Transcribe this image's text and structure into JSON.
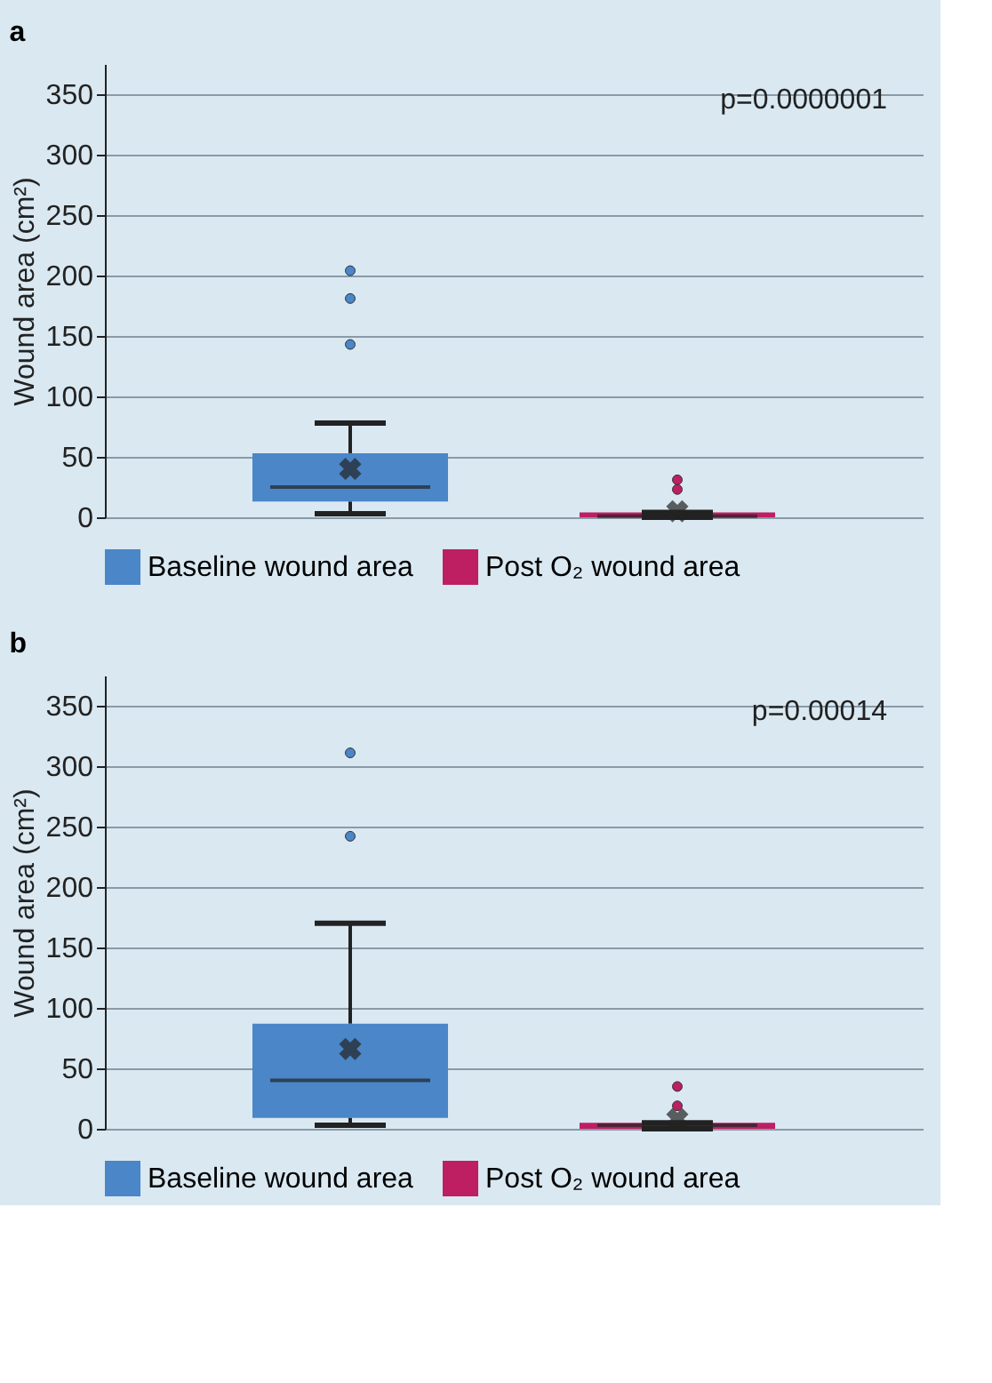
{
  "chart_data": [
    {
      "type": "box",
      "title": "a",
      "ylabel": "Wound area (cm²)",
      "categories": [
        null,
        null
      ],
      "series": [
        {
          "name": "Baseline wound area",
          "color": "#4a86c8",
          "boxes": [
            {
              "low": 3,
              "q1": 13,
              "median": 25,
              "q3": 53,
              "high": 78,
              "mean": 40,
              "outliers": [
                143,
                181,
                204
              ]
            },
            null
          ]
        },
        {
          "name": "Post O₂ wound area",
          "color": "#be1e62",
          "boxes": [
            null,
            {
              "low": 0,
              "q1": 0,
              "median": 1,
              "q3": 4,
              "high": 4,
              "mean": 5,
              "outliers": [
                23,
                31
              ]
            }
          ]
        }
      ],
      "ylim": [
        0,
        375
      ],
      "yticks": [
        0,
        50,
        100,
        150,
        200,
        250,
        300,
        350
      ],
      "grid": "y",
      "legend": "bottom",
      "tick_labels": "y",
      "annotations": [
        "p=0.0000001"
      ]
    },
    {
      "type": "box",
      "title": "b",
      "ylabel": "Wound area (cm²)",
      "categories": [
        null,
        null
      ],
      "series": [
        {
          "name": "Baseline wound area",
          "color": "#4a86c8",
          "boxes": [
            {
              "low": 3,
              "q1": 9,
              "median": 40,
              "q3": 87,
              "high": 170,
              "mean": 66,
              "outliers": [
                242,
                311
              ]
            },
            null
          ]
        },
        {
          "name": "Post O₂ wound area",
          "color": "#be1e62",
          "boxes": [
            null,
            {
              "low": 0,
              "q1": 0,
              "median": 3,
              "q3": 5,
              "high": 5,
              "mean": 8,
              "outliers": [
                19,
                35
              ]
            }
          ]
        }
      ],
      "ylim": [
        0,
        375
      ],
      "yticks": [
        0,
        50,
        100,
        150,
        200,
        250,
        300,
        350
      ],
      "grid": "y",
      "legend": "bottom",
      "tick_labels": "y",
      "annotations": [
        "p=0.00014"
      ]
    }
  ]
}
